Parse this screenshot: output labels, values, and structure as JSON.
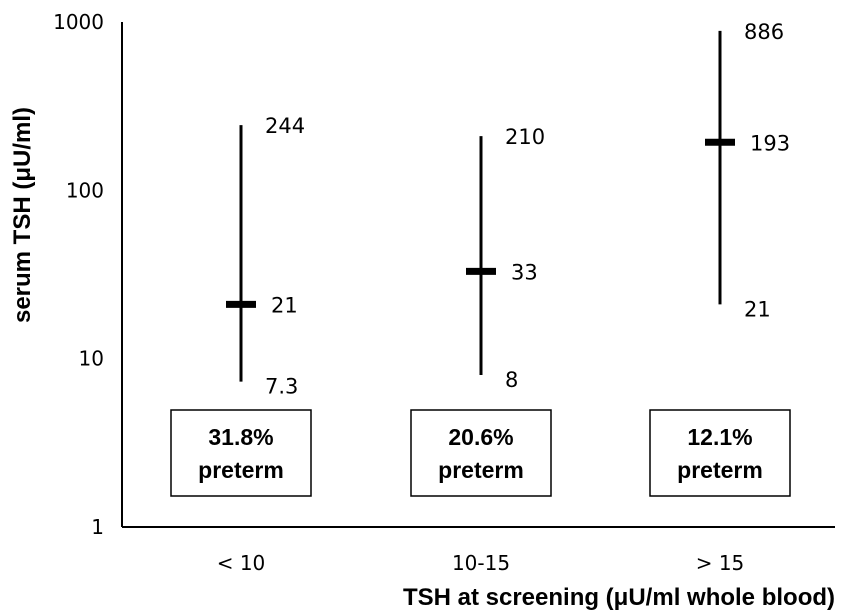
{
  "chart_data": {
    "type": "range",
    "title": "",
    "xlabel": "TSH at screening (μU/ml whole blood)",
    "ylabel": "serum TSH (μU/ml)",
    "yscale": "log",
    "ylim": [
      1,
      1000
    ],
    "yticks": [
      "1",
      "10",
      "100",
      "1000"
    ],
    "categories": [
      "< 10",
      "10-15",
      "> 15"
    ],
    "groups": [
      {
        "category": "< 10",
        "min": 7.3,
        "median": 21,
        "max": 244,
        "min_label": "7.3",
        "median_label": "21",
        "max_label": "244",
        "box_line1": "31.8%",
        "box_line2": "preterm"
      },
      {
        "category": "10-15",
        "min": 8,
        "median": 33,
        "max": 210,
        "min_label": "8",
        "median_label": "33",
        "max_label": "210",
        "box_line1": "20.6%",
        "box_line2": "preterm"
      },
      {
        "category": "> 15",
        "min": 21,
        "median": 193,
        "max": 886,
        "min_label": "21",
        "median_label": "193",
        "max_label": "886",
        "box_line1": "12.1%",
        "box_line2": "preterm"
      }
    ]
  }
}
